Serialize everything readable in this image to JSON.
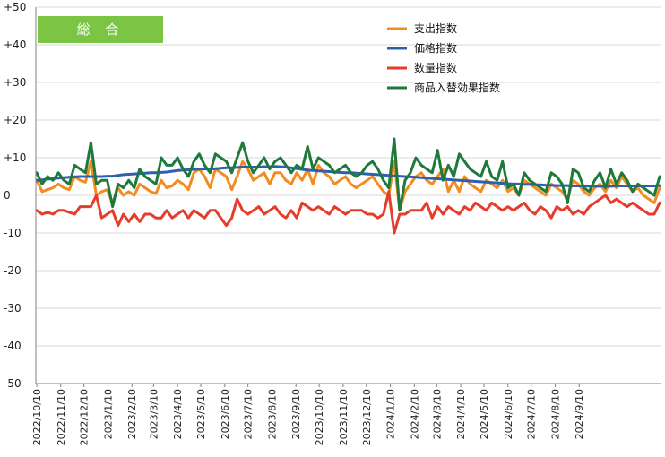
{
  "chart_data": {
    "type": "line",
    "badge": "総 合",
    "colors": {
      "badge_bg": "#7cc444",
      "grid": "#d9d9d9",
      "axis": "#808080"
    },
    "ylim": [
      -50,
      50
    ],
    "y_ticks": [
      "+50",
      "+40",
      "+30",
      "+20",
      "+10",
      "0",
      "-10",
      "-20",
      "-30",
      "-40",
      "-50"
    ],
    "x_start": "2022/10/10",
    "x_step_days": 7,
    "x_tick_labels": [
      "2022/10/10",
      "2022/11/10",
      "2022/12/10",
      "2023/1/10",
      "2023/2/10",
      "2023/3/10",
      "2023/4/10",
      "2023/5/10",
      "2023/6/10",
      "2023/7/10",
      "2023/8/10",
      "2023/9/10",
      "2023/10/10",
      "2023/11/10",
      "2023/12/10",
      "2024/1/10",
      "2024/2/10",
      "2024/3/10",
      "2024/4/10",
      "2024/5/10",
      "2024/6/10",
      "2024/7/10",
      "2024/8/10",
      "2024/9/10"
    ],
    "legend_placement": "top-right",
    "grid": "horizontal",
    "series": [
      {
        "name": "支出指数",
        "color": "#f28c1e",
        "values": [
          4,
          1,
          1.5,
          2,
          3,
          2,
          1.5,
          5,
          4,
          3.5,
          9,
          0,
          1,
          1.5,
          -2,
          2,
          0,
          1,
          0,
          3,
          2,
          1,
          0.5,
          4,
          2,
          2.5,
          4,
          3,
          1.5,
          6,
          7,
          5,
          2,
          7,
          6,
          5,
          1.5,
          5,
          9,
          7,
          4,
          5,
          6,
          3,
          6,
          6,
          4,
          3,
          6,
          4,
          7,
          3,
          8,
          6,
          5,
          3,
          4,
          5,
          3,
          2,
          3,
          4,
          5,
          3,
          1,
          0,
          9,
          -4,
          1,
          3,
          5,
          6,
          4,
          3,
          5,
          7,
          1,
          4,
          1,
          5,
          3,
          2,
          1,
          4,
          3,
          2,
          4,
          1,
          2,
          0,
          4,
          3,
          2,
          1,
          0,
          3,
          2,
          1,
          -1,
          4,
          3,
          1,
          0,
          2,
          3,
          1,
          4,
          2,
          5,
          3,
          1,
          2,
          0,
          -1,
          -2,
          2
        ]
      },
      {
        "name": "価格指数",
        "color": "#2f5fb3",
        "values": [
          4.0,
          4.1,
          4.3,
          4.4,
          4.6,
          4.7,
          4.8,
          4.9,
          5.0,
          5.0,
          5.0,
          5.0,
          5.0,
          5.1,
          5.1,
          5.3,
          5.5,
          5.6,
          5.7,
          5.8,
          5.9,
          6.0,
          6.0,
          6.1,
          6.2,
          6.4,
          6.6,
          6.7,
          6.8,
          6.9,
          7.0,
          7.0,
          7.0,
          7.1,
          7.2,
          7.3,
          7.3,
          7.4,
          7.5,
          7.5,
          7.5,
          7.5,
          7.6,
          7.6,
          7.7,
          7.6,
          7.5,
          7.3,
          7.1,
          6.9,
          6.7,
          6.6,
          6.5,
          6.4,
          6.3,
          6.2,
          6.1,
          6.0,
          6.0,
          5.9,
          5.8,
          5.7,
          5.6,
          5.5,
          5.4,
          5.3,
          5.2,
          5.1,
          5.0,
          4.9,
          4.8,
          4.7,
          4.6,
          4.5,
          4.4,
          4.3,
          4.2,
          4.1,
          4.0,
          3.9,
          3.8,
          3.7,
          3.6,
          3.5,
          3.4,
          3.3,
          3.2,
          3.1,
          3.0,
          3.0,
          2.9,
          2.9,
          2.8,
          2.8,
          2.7,
          2.7,
          2.6,
          2.6,
          2.6,
          2.5,
          2.5,
          2.5,
          2.4,
          2.4,
          2.4,
          2.4,
          2.4,
          2.5,
          2.5,
          2.5,
          2.5,
          2.5,
          2.5,
          2.5,
          2.5,
          2.6
        ]
      },
      {
        "name": "数量指数",
        "color": "#e63c2b",
        "values": [
          -4,
          -5,
          -4.5,
          -5,
          -4,
          -4,
          -4.5,
          -5,
          -3,
          -3,
          -3,
          0,
          -6,
          -5,
          -4,
          -8,
          -5,
          -7,
          -5,
          -7,
          -5,
          -5,
          -6,
          -6,
          -4,
          -6,
          -5,
          -4,
          -6,
          -4,
          -5,
          -6,
          -4,
          -4,
          -6,
          -8,
          -6,
          -1,
          -4,
          -5,
          -4,
          -3,
          -5,
          -4,
          -3,
          -5,
          -6,
          -4,
          -6,
          -2,
          -3,
          -4,
          -3,
          -4,
          -5,
          -3,
          -4,
          -5,
          -4,
          -4,
          -4,
          -5,
          -5,
          -6,
          -5,
          1,
          -10,
          -5,
          -5,
          -4,
          -4,
          -4,
          -2,
          -6,
          -3,
          -5,
          -3,
          -4,
          -5,
          -3,
          -4,
          -2,
          -3,
          -4,
          -2,
          -3,
          -4,
          -3,
          -4,
          -3,
          -2,
          -4,
          -5,
          -3,
          -4,
          -6,
          -3,
          -4,
          -3,
          -5,
          -4,
          -5,
          -3,
          -2,
          -1,
          0,
          -2,
          -1,
          -2,
          -3,
          -2,
          -3,
          -4,
          -5,
          -5,
          -2
        ]
      },
      {
        "name": "商品入替効果指数",
        "color": "#1e7a3c",
        "values": [
          6,
          3,
          5,
          4,
          6,
          4,
          3,
          8,
          7,
          6,
          14,
          3,
          4,
          4,
          -3,
          3,
          2,
          4,
          2,
          7,
          5,
          4,
          3,
          10,
          8,
          8,
          10,
          7,
          5,
          9,
          11,
          8,
          6,
          11,
          10,
          9,
          6,
          10,
          14,
          9,
          6,
          8,
          10,
          7,
          9,
          10,
          8,
          6,
          8,
          7,
          13,
          7,
          10,
          9,
          8,
          6,
          7,
          8,
          6,
          5,
          6,
          8,
          9,
          7,
          4,
          2,
          15,
          -4,
          4,
          6,
          10,
          8,
          7,
          6,
          12,
          4,
          8,
          5,
          11,
          9,
          7,
          6,
          5,
          9,
          5,
          4,
          9,
          2,
          3,
          0,
          6,
          4,
          3,
          2,
          1,
          6,
          5,
          3,
          -2,
          7,
          6,
          2,
          1,
          4,
          6,
          2,
          7,
          3,
          6,
          4,
          1,
          3,
          2,
          1,
          0,
          5
        ]
      }
    ]
  }
}
